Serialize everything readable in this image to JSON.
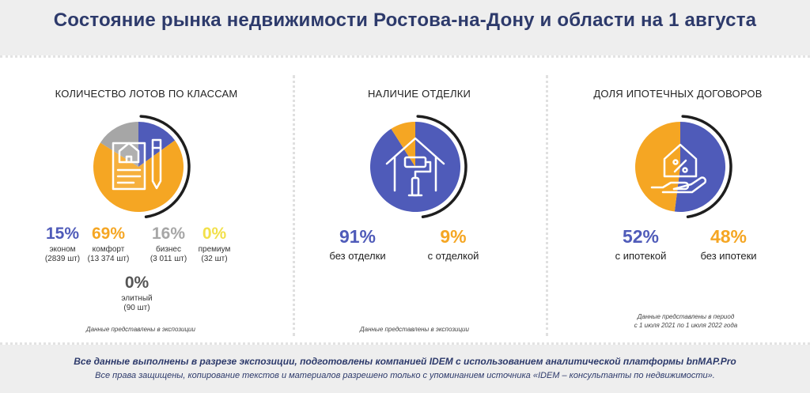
{
  "title": "Состояние рынка недвижимости Ростова-на-Дону и области на 1 августа",
  "colors": {
    "blue": "#4f5bb9",
    "orange": "#f5a623",
    "gray": "#a6a6a6",
    "yellow": "#f2e04a",
    "dark": "#1e1e1e",
    "title": "#2d3a6b"
  },
  "chart_data": [
    {
      "type": "pie",
      "title": "КОЛИЧЕСТВО ЛОТОВ ПО КЛАССАМ",
      "icon": "document-house-icon",
      "slices": [
        {
          "name": "эконом",
          "percent": 15,
          "value_label": "15%",
          "count": "(2839 шт)",
          "color": "#4f5bb9"
        },
        {
          "name": "комфорт",
          "percent": 69,
          "value_label": "69%",
          "count": "(13 374 шт)",
          "color": "#f5a623"
        },
        {
          "name": "бизнес",
          "percent": 16,
          "value_label": "16%",
          "count": "(3 011 шт)",
          "color": "#a6a6a6"
        },
        {
          "name": "премиум",
          "percent": 0,
          "value_label": "0%",
          "count": "(32 шт)",
          "color": "#f2e04a"
        },
        {
          "name": "элитный",
          "percent": 0,
          "value_label": "0%",
          "count": "(90 шт)",
          "color": "#555555"
        }
      ],
      "note": "Данные представлены в экспозиции"
    },
    {
      "type": "pie",
      "title": "НАЛИЧИЕ ОТДЕЛКИ",
      "icon": "house-paint-roller-icon",
      "slices": [
        {
          "name": "без отделки",
          "percent": 91,
          "value_label": "91%",
          "color": "#4f5bb9"
        },
        {
          "name": "с отделкой",
          "percent": 9,
          "value_label": "9%",
          "color": "#f5a623"
        }
      ],
      "note": "Данные представлены в экспозиции"
    },
    {
      "type": "pie",
      "title": "ДОЛЯ ИПОТЕЧНЫХ ДОГОВОРОВ",
      "icon": "hand-house-percent-icon",
      "slices": [
        {
          "name": "с ипотекой",
          "percent": 52,
          "value_label": "52%",
          "color": "#4f5bb9"
        },
        {
          "name": "без ипотеки",
          "percent": 48,
          "value_label": "48%",
          "color": "#f5a623"
        }
      ],
      "note_line1": "Данные представлены в период",
      "note_line2": "с 1 июля 2021 по 1 июля 2022 года"
    }
  ],
  "footer": {
    "line1": "Все данные выполнены в разрезе экспозиции, подготовлены компанией IDEM с использованием аналитической платформы bnMAP.Pro",
    "line2": "Все права защищены, копирование текстов и материалов разрешено только с упоминанием источника «IDEM – консультанты по недвижимости»."
  }
}
